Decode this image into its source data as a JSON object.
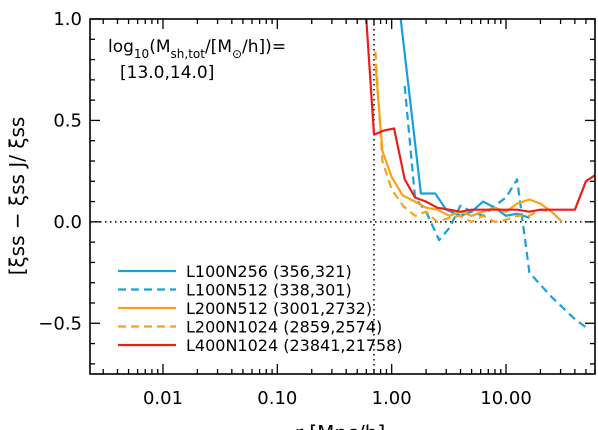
{
  "chart_data": {
    "type": "line",
    "x_scale": "log",
    "xlim": [
      0.0023,
      60
    ],
    "ylim": [
      -0.75,
      1.0
    ],
    "xlabel": "r [Mpc/h]",
    "ylabel": "[ξss − ξss J/ ξss",
    "xticks": [
      {
        "value": 0.01,
        "label": "0.01"
      },
      {
        "value": 0.1,
        "label": "0.10"
      },
      {
        "value": 1.0,
        "label": "1.00"
      },
      {
        "value": 10.0,
        "label": "10.00"
      }
    ],
    "yticks": [
      {
        "value": 1.0,
        "label": "1.0"
      },
      {
        "value": 0.5,
        "label": "0.5"
      },
      {
        "value": 0.0,
        "label": "0.0"
      },
      {
        "value": -0.5,
        "label": "−0.5"
      }
    ],
    "annotation": {
      "line1_pre": "log",
      "line1_sub1": "10",
      "line1_mid": "(M",
      "line1_sub2": "sh,tot",
      "line1_mid2": "/[M",
      "line1_sub3": "⊙",
      "line1_post": "/h])=",
      "line2": "[13.0,14.0]"
    },
    "reference_lines": {
      "x": 0.7,
      "y": 0.0
    },
    "grid": false,
    "legend_placement": "bottom-left",
    "series": [
      {
        "name": "L100N256 (356,321)",
        "color": "#1aa0d8",
        "dash": "solid",
        "x": [
          1.2,
          1.8,
          2.4,
          3.0,
          4.0,
          5.0,
          6.3,
          8.0,
          10.0,
          12.5,
          16.0
        ],
        "y": [
          1.0,
          0.14,
          0.14,
          0.06,
          0.03,
          0.05,
          0.1,
          0.07,
          0.03,
          0.04,
          0.02
        ]
      },
      {
        "name": "L100N512 (338,301)",
        "color": "#1aa0d8",
        "dash": "dashed",
        "x": [
          1.3,
          1.6,
          2.0,
          2.6,
          3.2,
          4.0,
          5.0,
          6.3,
          8.0,
          10.0,
          12.5,
          16.0,
          25.0,
          40.0,
          50.0
        ],
        "y": [
          0.67,
          0.12,
          0.05,
          -0.09,
          -0.03,
          0.08,
          0.05,
          0.03,
          0.08,
          0.12,
          0.21,
          -0.25,
          -0.37,
          -0.48,
          -0.52
        ]
      },
      {
        "name": "L200N512 (3001,2732)",
        "color": "#f7a21b",
        "dash": "solid",
        "x": [
          0.72,
          0.83,
          1.0,
          1.25,
          1.6,
          2.0,
          2.5,
          3.2,
          4.0,
          5.0,
          6.3,
          8.0,
          10.0,
          12.5,
          16.0,
          20.0,
          25.0,
          31.0
        ],
        "y": [
          0.78,
          0.35,
          0.22,
          0.13,
          0.1,
          0.07,
          0.06,
          0.03,
          0.05,
          0.03,
          0.05,
          0.07,
          0.05,
          0.09,
          0.11,
          0.09,
          0.05,
          0.0
        ]
      },
      {
        "name": "L200N1024 (2859,2574)",
        "color": "#f7a21b",
        "dash": "dashed",
        "x": [
          0.72,
          0.83,
          1.0,
          1.25,
          1.6,
          2.0,
          2.5,
          3.2,
          4.0,
          5.0,
          6.3,
          8.0,
          10.0,
          12.5,
          16.0,
          20.0,
          25.0
        ],
        "y": [
          0.84,
          0.3,
          0.16,
          0.08,
          0.03,
          0.05,
          0.0,
          0.02,
          0.03,
          0.0,
          0.03,
          0.0,
          0.01,
          0.03,
          0.03,
          0.06,
          0.05
        ]
      },
      {
        "name": "L400N1024 (23841,21758)",
        "color": "#e8201a",
        "dash": "solid",
        "x": [
          0.6,
          0.7,
          0.85,
          1.05,
          1.3,
          1.6,
          2.0,
          2.5,
          3.2,
          4.0,
          5.0,
          6.3,
          8.0,
          10.0,
          12.5,
          16.0,
          20.0,
          25.0,
          31.0,
          40.0,
          50.0,
          60.0
        ],
        "y": [
          1.0,
          0.43,
          0.45,
          0.46,
          0.21,
          0.12,
          0.1,
          0.07,
          0.06,
          0.05,
          0.06,
          0.06,
          0.06,
          0.06,
          0.06,
          0.05,
          0.06,
          0.06,
          0.06,
          0.06,
          0.2,
          0.23
        ]
      }
    ]
  }
}
